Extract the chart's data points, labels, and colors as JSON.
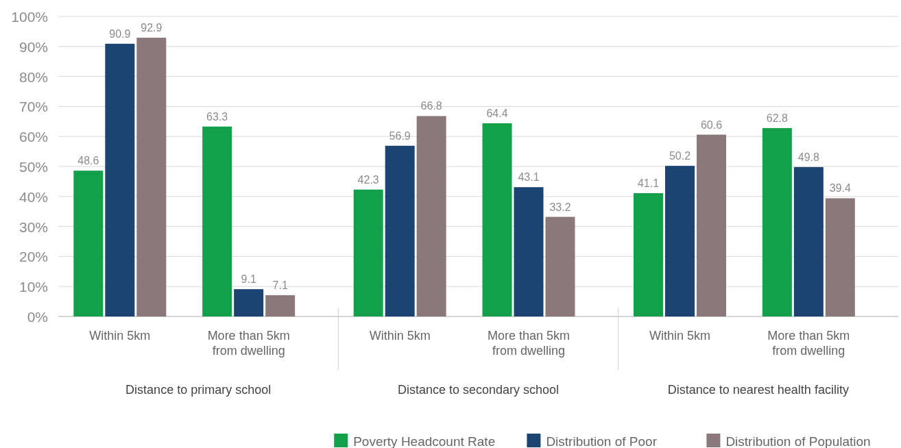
{
  "chart_data": {
    "type": "bar",
    "categories": [
      "Within 5km",
      "More than 5km from dwelling",
      "Within 5km",
      "More than 5km from dwelling",
      "Within 5km",
      "More than 5km from dwelling"
    ],
    "series": [
      {
        "name": "Poverty Headcount Rate",
        "color": "#12a04a",
        "values": [
          48.6,
          63.3,
          42.3,
          64.4,
          41.1,
          62.8
        ]
      },
      {
        "name": "Distribution of Poor",
        "color": "#1b4472",
        "values": [
          90.9,
          9.1,
          56.9,
          43.1,
          50.2,
          49.8
        ]
      },
      {
        "name": "Distribution of Population",
        "color": "#8b787a",
        "values": [
          92.9,
          7.1,
          66.8,
          33.2,
          60.6,
          39.4
        ]
      }
    ],
    "annotations": [
      "Distance to primary school",
      "Distance to secondary school",
      "Distance to nearest health facility"
    ],
    "ylim": [
      0,
      100
    ],
    "yticks": [
      {
        "value": 0,
        "label": "0%"
      },
      {
        "value": 10,
        "label": "10%"
      },
      {
        "value": 20,
        "label": "20%"
      },
      {
        "value": 30,
        "label": "30%"
      },
      {
        "value": 40,
        "label": "40%"
      },
      {
        "value": 50,
        "label": "50%"
      },
      {
        "value": 60,
        "label": "60%"
      },
      {
        "value": 70,
        "label": "70%"
      },
      {
        "value": 80,
        "label": "80%"
      },
      {
        "value": 90,
        "label": "90%"
      },
      {
        "value": 100,
        "label": "100%"
      }
    ],
    "grid": "y",
    "data_labels": true,
    "legend": "bottom right"
  }
}
